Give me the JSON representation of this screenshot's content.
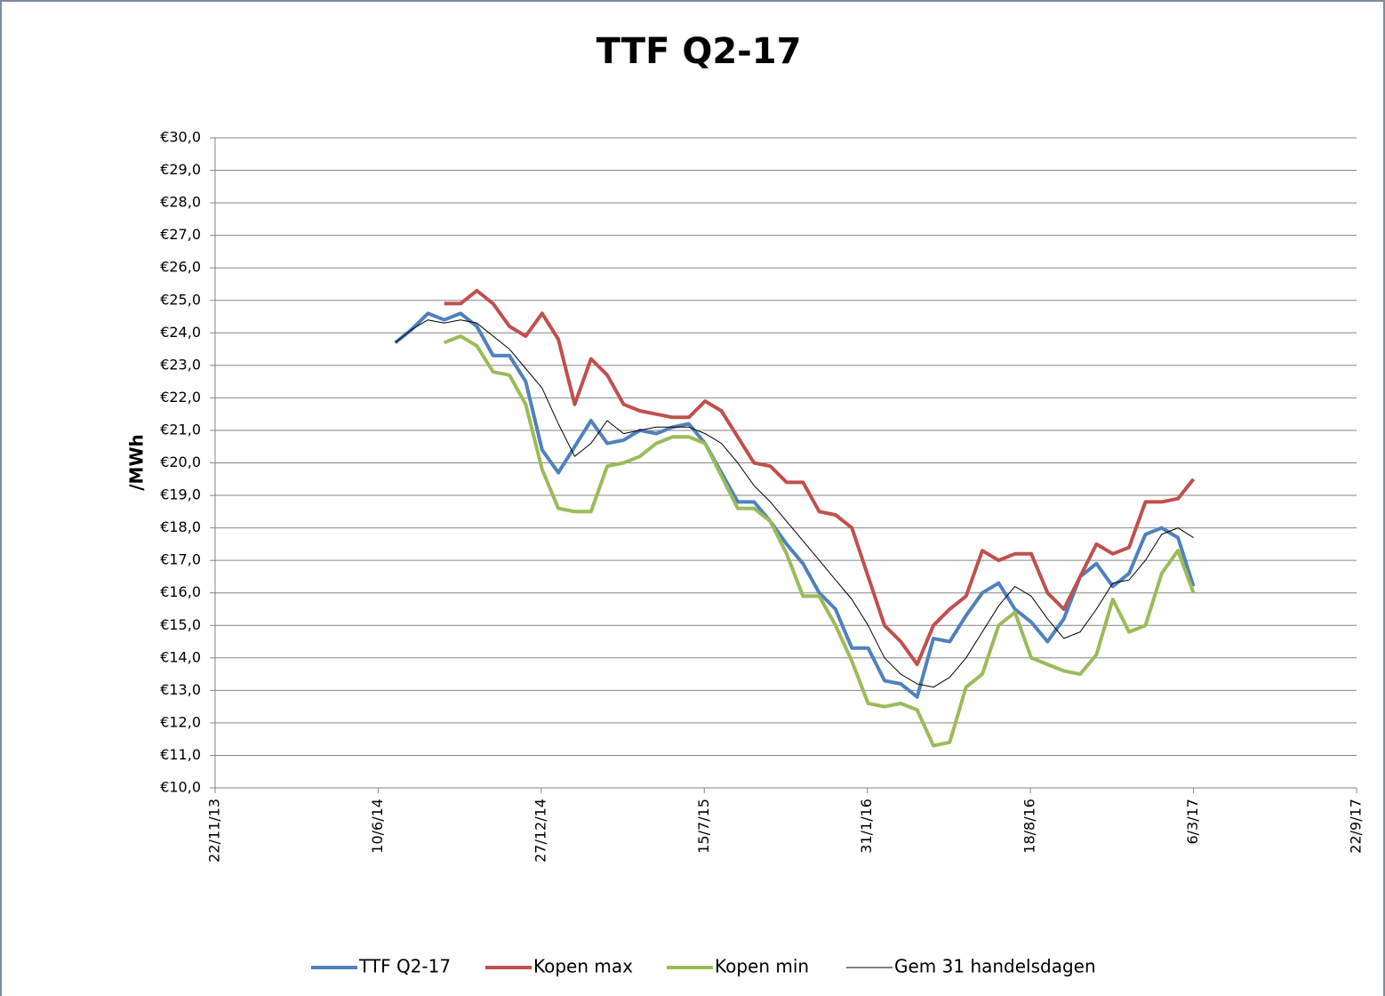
{
  "chart_data": {
    "type": "line",
    "title": "TTF Q2-17",
    "y_label": "/MWh",
    "x": [
      "2014-07-01",
      "2014-07-21",
      "2014-08-10",
      "2014-08-30",
      "2014-09-19",
      "2014-10-09",
      "2014-10-29",
      "2014-11-18",
      "2014-12-08",
      "2014-12-28",
      "2015-01-17",
      "2015-02-06",
      "2015-02-26",
      "2015-03-18",
      "2015-04-07",
      "2015-04-27",
      "2015-05-17",
      "2015-06-06",
      "2015-06-26",
      "2015-07-16",
      "2015-08-05",
      "2015-08-25",
      "2015-09-14",
      "2015-10-04",
      "2015-10-24",
      "2015-11-13",
      "2015-12-03",
      "2015-12-23",
      "2016-01-12",
      "2016-02-01",
      "2016-02-21",
      "2016-03-12",
      "2016-04-01",
      "2016-04-21",
      "2016-05-11",
      "2016-05-31",
      "2016-06-20",
      "2016-07-10",
      "2016-07-30",
      "2016-08-19",
      "2016-09-08",
      "2016-09-28",
      "2016-10-18",
      "2016-11-07",
      "2016-11-27",
      "2016-12-17",
      "2017-01-06",
      "2017-01-26",
      "2017-02-15",
      "2017-03-06"
    ],
    "series": [
      {
        "name": "TTF Q2-17",
        "color": "#4f81bd",
        "width": 4,
        "values": [
          23.7,
          24.1,
          24.6,
          24.4,
          24.6,
          24.2,
          23.3,
          23.3,
          22.5,
          20.4,
          19.7,
          20.5,
          21.3,
          20.6,
          20.7,
          21.0,
          20.9,
          21.1,
          21.2,
          20.6,
          19.7,
          18.8,
          18.8,
          18.2,
          17.5,
          16.9,
          16.0,
          15.5,
          14.3,
          14.3,
          13.3,
          13.2,
          12.8,
          14.6,
          14.5,
          15.3,
          16.0,
          16.3,
          15.5,
          15.1,
          14.5,
          15.2,
          16.5,
          16.9,
          16.2,
          16.6,
          17.8,
          18.0,
          17.7,
          16.2
        ]
      },
      {
        "name": "Kopen max",
        "color": "#c0504d",
        "width": 4,
        "values": [
          null,
          null,
          null,
          24.9,
          24.9,
          25.3,
          24.9,
          24.2,
          23.9,
          24.6,
          23.8,
          21.8,
          23.2,
          22.7,
          21.8,
          21.6,
          21.5,
          21.4,
          21.4,
          21.9,
          21.6,
          20.8,
          20.0,
          19.9,
          19.4,
          19.4,
          18.5,
          18.4,
          18.0,
          16.5,
          15.0,
          14.5,
          13.8,
          15.0,
          15.5,
          15.9,
          17.3,
          17.0,
          17.2,
          17.2,
          16.0,
          15.5,
          16.5,
          17.5,
          17.2,
          17.4,
          18.8,
          18.8,
          18.9,
          19.5
        ]
      },
      {
        "name": "Kopen min",
        "color": "#9bbb59",
        "width": 4,
        "values": [
          null,
          null,
          null,
          23.7,
          23.9,
          23.6,
          22.8,
          22.7,
          21.8,
          19.8,
          18.6,
          18.5,
          18.5,
          19.9,
          20.0,
          20.2,
          20.6,
          20.8,
          20.8,
          20.6,
          19.6,
          18.6,
          18.6,
          18.2,
          17.2,
          15.9,
          15.9,
          15.0,
          13.9,
          12.6,
          12.5,
          12.6,
          12.4,
          11.3,
          11.4,
          13.1,
          13.5,
          15.0,
          15.4,
          14.0,
          13.8,
          13.6,
          13.5,
          14.1,
          15.8,
          14.8,
          15.0,
          16.6,
          17.3,
          16.0
        ]
      },
      {
        "name": "Gem 31 handelsdagen",
        "color": "#000000",
        "width": 1,
        "values": [
          23.7,
          24.1,
          24.4,
          24.3,
          24.4,
          24.3,
          23.9,
          23.5,
          22.9,
          22.3,
          21.2,
          20.2,
          20.6,
          21.3,
          20.9,
          21.0,
          21.1,
          21.1,
          21.1,
          20.9,
          20.6,
          20.0,
          19.3,
          18.8,
          18.2,
          17.6,
          17.0,
          16.4,
          15.8,
          15.0,
          14.0,
          13.5,
          13.2,
          13.1,
          13.4,
          14.0,
          14.8,
          15.6,
          16.2,
          15.9,
          15.2,
          14.6,
          14.8,
          15.5,
          16.3,
          16.4,
          17.0,
          17.8,
          18.0,
          17.7
        ]
      }
    ],
    "xlim": [
      "2013-11-22",
      "2017-09-22"
    ],
    "xticks": [
      {
        "value": "2013-11-22",
        "label": "22/11/13"
      },
      {
        "value": "2014-06-10",
        "label": "10/6/14"
      },
      {
        "value": "2014-12-27",
        "label": "27/12/14"
      },
      {
        "value": "2015-07-15",
        "label": "15/7/15"
      },
      {
        "value": "2016-01-31",
        "label": "31/1/16"
      },
      {
        "value": "2016-08-18",
        "label": "18/8/16"
      },
      {
        "value": "2017-03-06",
        "label": "6/3/17"
      },
      {
        "value": "2017-09-22",
        "label": "22/9/17"
      }
    ],
    "ylim": [
      10,
      30
    ],
    "yticks": [
      {
        "value": 10,
        "label": "€10,0"
      },
      {
        "value": 11,
        "label": "€11,0"
      },
      {
        "value": 12,
        "label": "€12,0"
      },
      {
        "value": 13,
        "label": "€13,0"
      },
      {
        "value": 14,
        "label": "€14,0"
      },
      {
        "value": 15,
        "label": "€15,0"
      },
      {
        "value": 16,
        "label": "€16,0"
      },
      {
        "value": 17,
        "label": "€17,0"
      },
      {
        "value": 18,
        "label": "€18,0"
      },
      {
        "value": 19,
        "label": "€19,0"
      },
      {
        "value": 20,
        "label": "€20,0"
      },
      {
        "value": 21,
        "label": "€21,0"
      },
      {
        "value": 22,
        "label": "€22,0"
      },
      {
        "value": 23,
        "label": "€23,0"
      },
      {
        "value": 24,
        "label": "€24,0"
      },
      {
        "value": 25,
        "label": "€25,0"
      },
      {
        "value": 26,
        "label": "€26,0"
      },
      {
        "value": 27,
        "label": "€27,0"
      },
      {
        "value": 28,
        "label": "€28,0"
      },
      {
        "value": 29,
        "label": "€29,0"
      },
      {
        "value": 30,
        "label": "€30,0"
      }
    ],
    "grid": true,
    "legend": "bottom"
  }
}
